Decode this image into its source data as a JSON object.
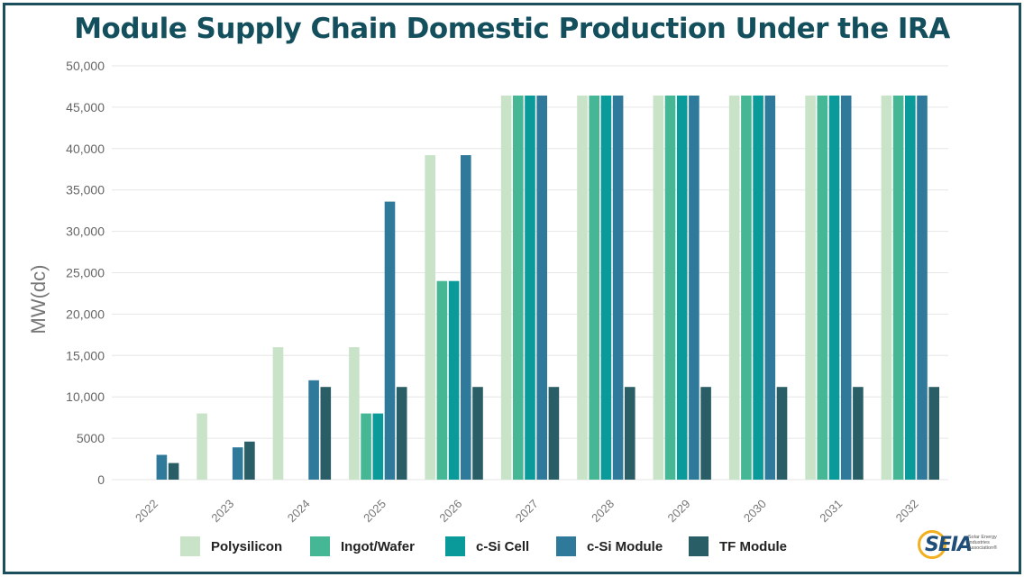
{
  "title": "Module Supply Chain Domestic Production Under the IRA",
  "logo": {
    "text": "SEIA",
    "subtext": "Solar Energy Industries Association®"
  },
  "colors": {
    "Polysilicon": "#c9e3c8",
    "Ingot/Wafer": "#45b795",
    "c-Si Cell": "#0b9a9a",
    "c-Si Module": "#2f7a9a",
    "TF Module": "#2a5e66",
    "title": "#134f5c",
    "frame": "#1b4f5c"
  },
  "chart_data": {
    "type": "bar",
    "title": "Module Supply Chain Domestic Production Under the IRA",
    "ylabel": "MW(dc)",
    "xlabel": "",
    "ylim": [
      0,
      50000
    ],
    "yticks": [
      "0",
      "5000",
      "10,000",
      "15,000",
      "20,000",
      "25,000",
      "30,000",
      "35,000",
      "40,000",
      "45,000",
      "50,000"
    ],
    "ytick_values": [
      0,
      5000,
      10000,
      15000,
      20000,
      25000,
      30000,
      35000,
      40000,
      45000,
      50000
    ],
    "grid": true,
    "legend": "bottom",
    "categories": [
      "2022",
      "2023",
      "2024",
      "2025",
      "2026",
      "2027",
      "2028",
      "2029",
      "2030",
      "2031",
      "2032"
    ],
    "series": [
      {
        "name": "Polysilicon",
        "values": [
          0,
          8000,
          16000,
          16000,
          39200,
          46400,
          46400,
          46400,
          46400,
          46400,
          46400
        ]
      },
      {
        "name": "Ingot/Wafer",
        "values": [
          0,
          0,
          0,
          8000,
          24000,
          46400,
          46400,
          46400,
          46400,
          46400,
          46400
        ]
      },
      {
        "name": "c-Si Cell",
        "values": [
          0,
          0,
          0,
          8000,
          24000,
          46400,
          46400,
          46400,
          46400,
          46400,
          46400
        ]
      },
      {
        "name": "c-Si Module",
        "values": [
          3000,
          3900,
          12000,
          33600,
          39200,
          46400,
          46400,
          46400,
          46400,
          46400,
          46400
        ]
      },
      {
        "name": "TF Module",
        "values": [
          2000,
          4600,
          11200,
          11200,
          11200,
          11200,
          11200,
          11200,
          11200,
          11200,
          11200
        ]
      }
    ]
  }
}
